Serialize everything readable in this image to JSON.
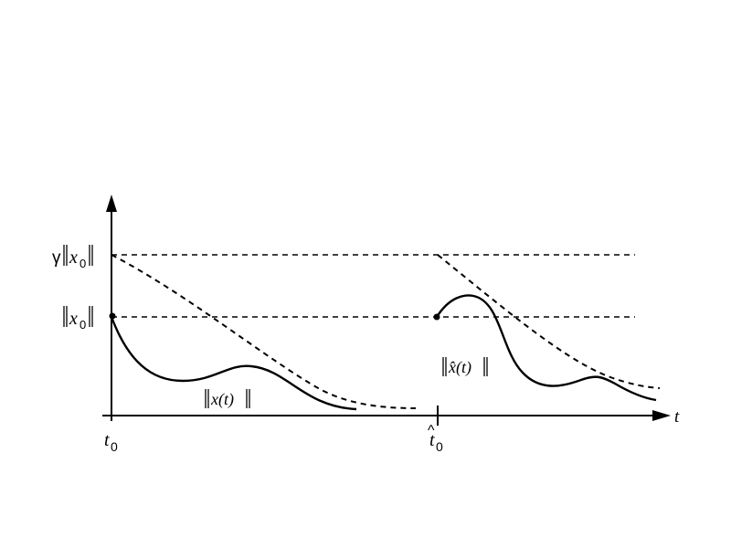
{
  "labels": {
    "gamma": "γ",
    "x0": "x",
    "sub0": "0",
    "t_axis": "t",
    "t0": "t",
    "t0hat": "t",
    "hat": "^",
    "x_of_t": "x(t)",
    "xhat_of_t": "x̂(t)"
  },
  "colors": {
    "stroke": "#000000",
    "background": "#ffffff"
  }
}
